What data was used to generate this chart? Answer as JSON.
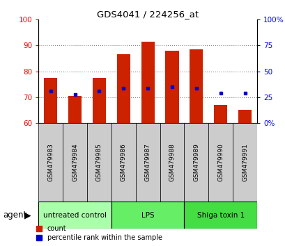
{
  "title": "GDS4041 / 224256_at",
  "samples": [
    "GSM479983",
    "GSM479984",
    "GSM479985",
    "GSM479986",
    "GSM479987",
    "GSM479988",
    "GSM479989",
    "GSM479990",
    "GSM479991"
  ],
  "bar_tops": [
    77.5,
    70.5,
    77.5,
    86.5,
    91.5,
    88.0,
    88.5,
    67.0,
    65.0
  ],
  "bar_bottom": 60,
  "blue_values_left": [
    72.5,
    71.0,
    72.5,
    73.5,
    73.5,
    74.0,
    73.5,
    71.5,
    71.5
  ],
  "bar_color": "#cc2200",
  "blue_color": "#0000cc",
  "ylim_left": [
    60,
    100
  ],
  "ylim_right": [
    0,
    100
  ],
  "yticks_left": [
    60,
    70,
    80,
    90,
    100
  ],
  "yticks_right": [
    0,
    25,
    50,
    75,
    100
  ],
  "ytick_labels_right": [
    "0%",
    "25",
    "50",
    "75",
    "100%"
  ],
  "grid_vals": [
    70,
    80,
    90
  ],
  "agent_groups": [
    {
      "label": "untreated control",
      "start": 0,
      "end": 3,
      "color": "#aaffaa"
    },
    {
      "label": "LPS",
      "start": 3,
      "end": 6,
      "color": "#66ee66"
    },
    {
      "label": "Shiga toxin 1",
      "start": 6,
      "end": 9,
      "color": "#44dd44"
    }
  ],
  "legend_count_label": "count",
  "legend_pct_label": "percentile rank within the sample",
  "agent_label": "agent",
  "bar_width": 0.55,
  "sample_box_color": "#cccccc",
  "fig_bg": "#ffffff"
}
